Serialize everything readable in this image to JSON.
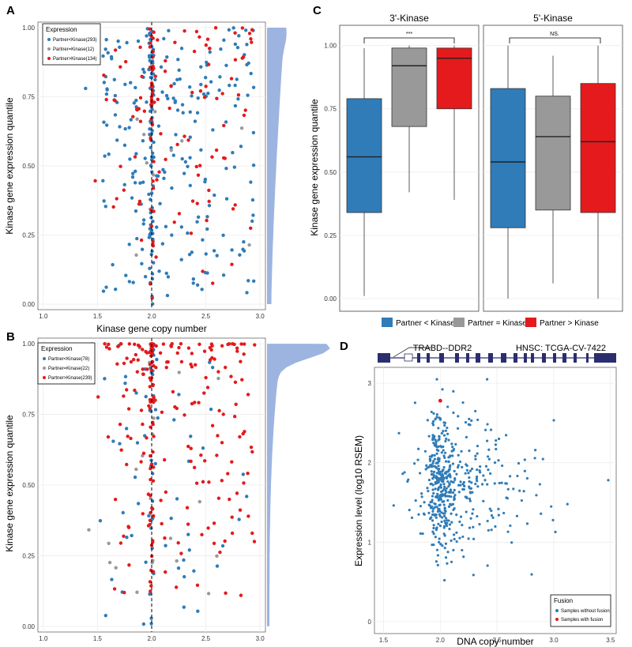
{
  "panels": {
    "A": {
      "letter": "A",
      "chart_data": {
        "type": "scatter",
        "xlabel": "Kinase gene copy number",
        "ylabel": "Kinase gene expression quantile",
        "xlim": [
          0.95,
          3.05
        ],
        "ylim": [
          -0.02,
          1.02
        ],
        "xticks": [
          1.0,
          1.5,
          2.0,
          2.5,
          3.0
        ],
        "xtick_labels": [
          "1.0",
          "1.5",
          "2.0",
          "2.5",
          "3.0"
        ],
        "yticks": [
          0.0,
          0.25,
          0.5,
          0.75,
          1.0
        ],
        "ytick_labels": [
          "0.00",
          "0.25",
          "0.50",
          "0.75",
          "1.00"
        ],
        "reference_line_x": 2.0,
        "legend_title": "Expression",
        "legend": [
          "Partner<Kinase(293)",
          "Partner=Kinase(12)",
          "Partner>Kinase(134)"
        ],
        "series_colors": [
          "#2f7cb8",
          "#999999",
          "#e41a1c"
        ],
        "marginal_density": "skewed toward high quantiles",
        "density_color": "#9db4e0"
      }
    },
    "B": {
      "letter": "B",
      "chart_data": {
        "type": "scatter",
        "xlabel": "",
        "ylabel": "Kinase gene expression quantile",
        "xlim": [
          0.95,
          3.05
        ],
        "ylim": [
          -0.02,
          1.02
        ],
        "xticks": [
          1.0,
          1.5,
          2.0,
          2.5,
          3.0
        ],
        "xtick_labels": [
          "1.0",
          "1.5",
          "2.0",
          "2.5",
          "3.0"
        ],
        "yticks": [
          0.0,
          0.25,
          0.5,
          0.75,
          1.0
        ],
        "ytick_labels": [
          "0.00",
          "0.25",
          "0.50",
          "0.75",
          "1.00"
        ],
        "reference_line_x": 2.0,
        "legend_title": "Expression",
        "legend": [
          "Partner<Kinase(78)",
          "Partner=Kinase(22)",
          "Partner>Kinase(239)"
        ],
        "series_colors": [
          "#2f7cb8",
          "#999999",
          "#e41a1c"
        ],
        "marginal_density": "sharp peak near 1.00",
        "density_color": "#9db4e0"
      }
    },
    "C": {
      "letter": "C",
      "chart_data": {
        "type": "box",
        "ylabel": "Kinase gene expression quantile",
        "ylim": [
          -0.05,
          1.08
        ],
        "yticks": [
          0.0,
          0.25,
          0.5,
          0.75,
          1.0
        ],
        "ytick_labels": [
          "0.00",
          "0.25",
          "0.50",
          "0.75",
          "1.00"
        ],
        "facets": [
          {
            "title": "3'-Kinase",
            "significance": "***",
            "boxes": [
              {
                "group": "Partner < Kinase",
                "min": 0.01,
                "q1": 0.34,
                "median": 0.56,
                "q3": 0.79,
                "max": 0.99
              },
              {
                "group": "Partner = Kinase",
                "min": 0.42,
                "q1": 0.68,
                "median": 0.92,
                "q3": 0.99,
                "max": 1.0
              },
              {
                "group": "Partner > Kinase",
                "min": 0.39,
                "q1": 0.75,
                "median": 0.95,
                "q3": 0.99,
                "max": 1.0
              }
            ]
          },
          {
            "title": "5'-Kinase",
            "significance": "NS.",
            "boxes": [
              {
                "group": "Partner < Kinase",
                "min": 0.0,
                "q1": 0.28,
                "median": 0.54,
                "q3": 0.83,
                "max": 1.0
              },
              {
                "group": "Partner = Kinase",
                "min": 0.06,
                "q1": 0.35,
                "median": 0.64,
                "q3": 0.8,
                "max": 0.96
              },
              {
                "group": "Partner > Kinase",
                "min": 0.0,
                "q1": 0.34,
                "median": 0.62,
                "q3": 0.85,
                "max": 1.0
              }
            ]
          }
        ],
        "legend": [
          "Partner < Kinase",
          "Partner = Kinase",
          "Partner > Kinase"
        ],
        "colors": [
          "#2f7cb8",
          "#999999",
          "#e41a1c"
        ]
      }
    },
    "D": {
      "letter": "D",
      "chart_data": {
        "type": "scatter",
        "xlabel": "DNA copy number",
        "ylabel": "Expression level (log10 RSEM)",
        "xlim": [
          1.42,
          3.55
        ],
        "ylim": [
          -0.15,
          3.2
        ],
        "xticks": [
          1.5,
          2.0,
          2.5,
          3.0,
          3.5
        ],
        "xtick_labels": [
          "1.5",
          "2.0",
          "2.5",
          "3.0",
          "3.5"
        ],
        "yticks": [
          0,
          1,
          2,
          3
        ],
        "ytick_labels": [
          "0",
          "1",
          "2",
          "3"
        ],
        "legend_title": "Fusion",
        "legend": [
          "Samples without fusion",
          "Samples with fusion"
        ],
        "colors": [
          "#2f7cb8",
          "#e41a1c"
        ],
        "fusion_sample": {
          "x": 2.0,
          "y": 2.78
        },
        "gene_track": {
          "fusion_label": "TRABD--DDR2",
          "sample_label": "HNSC: TCGA-CV-7422",
          "track_color": "#2b2d6e"
        }
      }
    }
  }
}
